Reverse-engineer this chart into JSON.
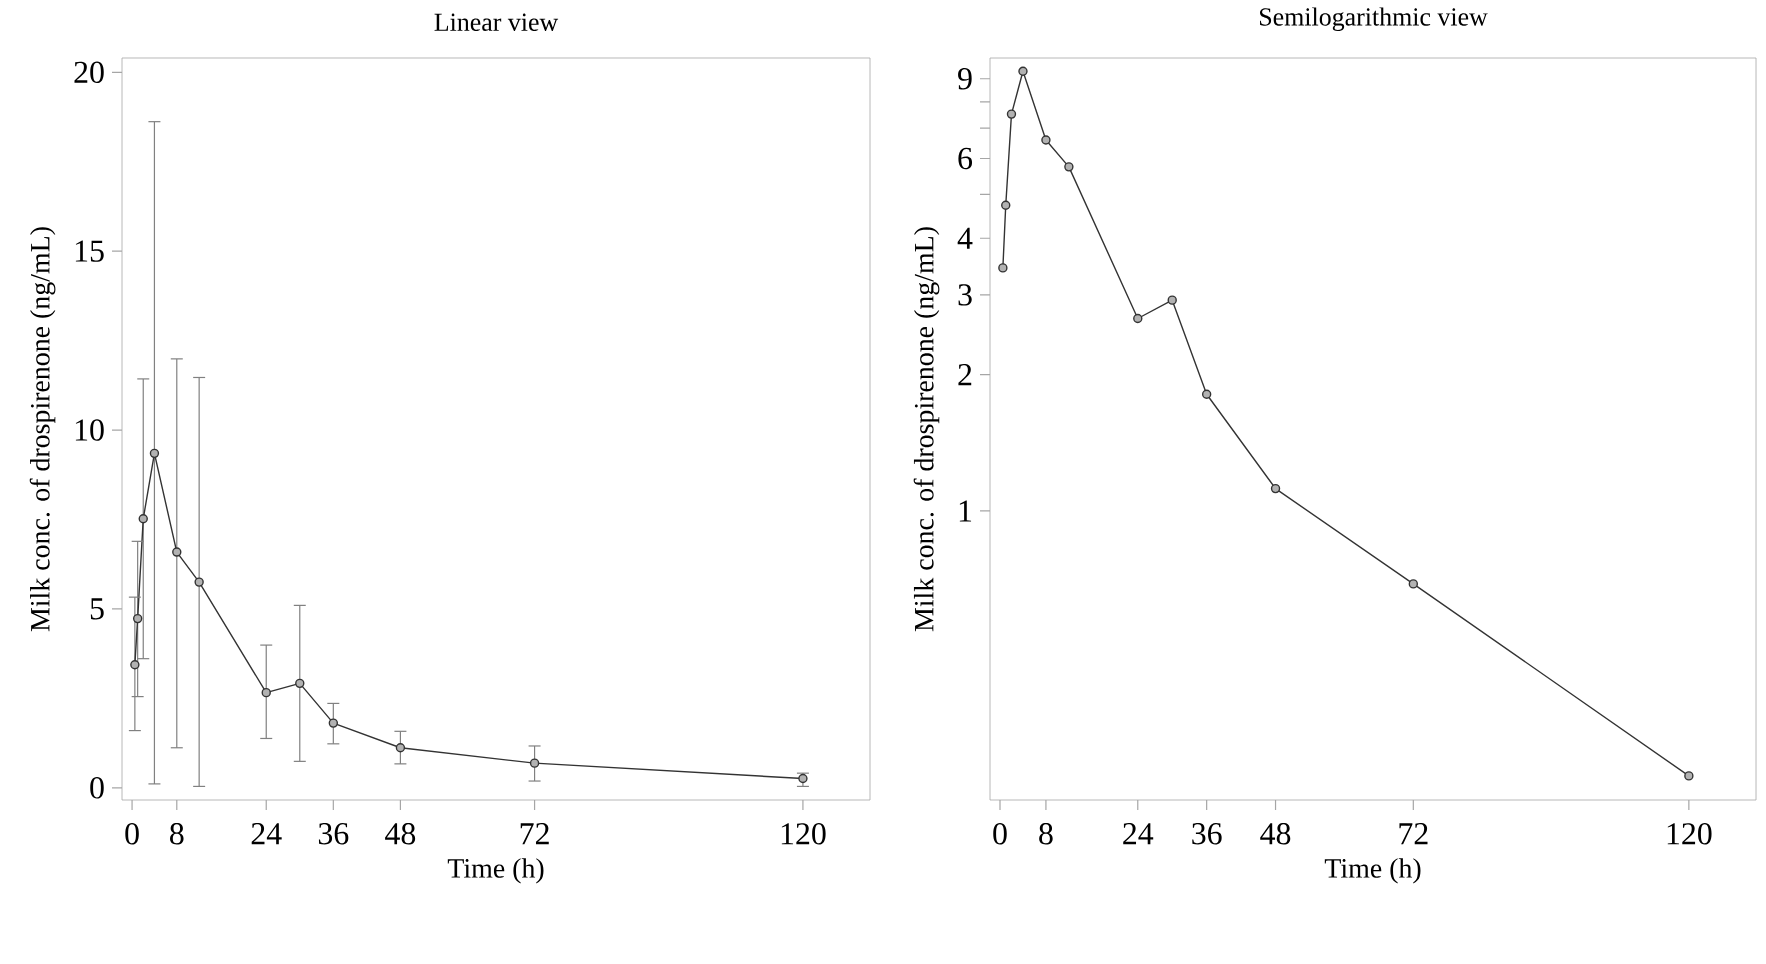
{
  "chart_data": [
    {
      "type": "line",
      "title": "Linear view",
      "xlabel": "Time (h)",
      "ylabel": "Milk conc. of drospirenone (ng/mL)",
      "color": "#333333",
      "marker": "circle",
      "x": [
        0.5,
        1,
        2,
        4,
        8,
        12,
        24,
        30,
        36,
        48,
        72,
        120
      ],
      "values": [
        3.44,
        4.73,
        7.52,
        9.35,
        6.59,
        5.75,
        2.66,
        2.92,
        1.81,
        1.12,
        0.69,
        0.26
      ],
      "errors": [
        [
          1.6,
          5.33
        ],
        [
          2.55,
          6.89
        ],
        [
          3.61,
          11.43
        ],
        [
          0.11,
          18.62
        ],
        [
          1.12,
          11.99
        ],
        [
          0.04,
          11.47
        ],
        [
          1.38,
          3.99
        ],
        [
          0.74,
          5.1
        ],
        [
          1.23,
          2.36
        ],
        [
          0.67,
          1.58
        ],
        [
          0.19,
          1.17
        ],
        [
          0.04,
          0.41
        ]
      ],
      "xlim": [
        -1.8,
        132
      ],
      "ylim": [
        -0.34,
        20.4
      ],
      "xticks": [
        0,
        8,
        24,
        36,
        48,
        72,
        120
      ],
      "yticks": [
        0,
        5,
        10,
        15,
        20
      ]
    },
    {
      "type": "line",
      "title": "Semilogarithmic view",
      "xlabel": "Time (h)",
      "ylabel": "Milk conc. of drospirenone (ng/mL)",
      "color": "#333333",
      "marker": "circle",
      "log": "y",
      "x": [
        0.5,
        1,
        2,
        4,
        8,
        12,
        24,
        30,
        36,
        48,
        72,
        120
      ],
      "values": [
        3.44,
        4.73,
        7.52,
        9.35,
        6.59,
        5.75,
        2.66,
        2.92,
        1.81,
        1.12,
        0.69,
        0.26
      ],
      "xlim": [
        -1.74,
        131.7
      ],
      "ylim": [
        0.23,
        10
      ],
      "xticks": [
        0,
        8,
        24,
        36,
        48,
        72,
        120
      ],
      "yticks": [
        1,
        2,
        3,
        4,
        {
          "value": 5,
          "label": null
        },
        6,
        {
          "value": 7,
          "label": null
        },
        {
          "value": 8,
          "label": null
        },
        9
      ]
    }
  ]
}
